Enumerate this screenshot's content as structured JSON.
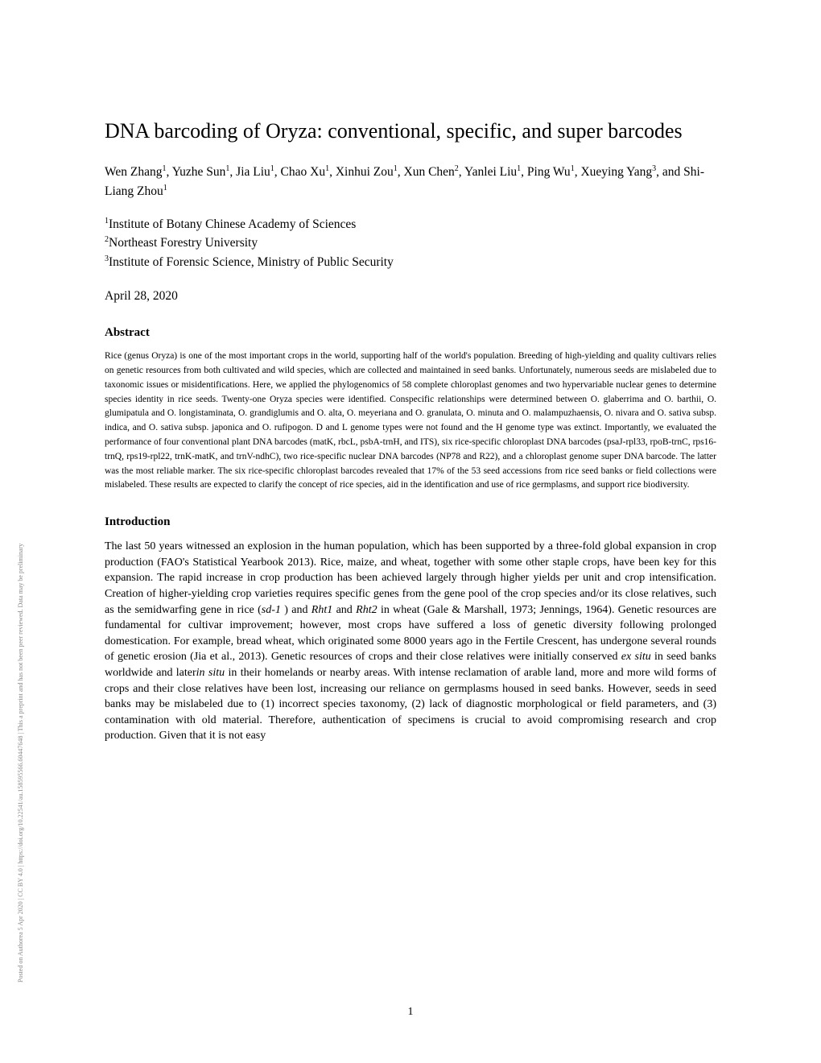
{
  "vertical_note": "Posted on Authorea 5 Apr 2020 | CC BY 4.0 | https://doi.org/10.22541/au.158595566.60447648 | This a preprint and has not been peer reviewed. Data may be preliminary",
  "title": "DNA barcoding of Oryza: conventional, specific, and super barcodes",
  "authors_parts": {
    "a1": "Wen Zhang",
    "a2": "Yuzhe Sun",
    "a3": "Jia Liu",
    "a4": "Chao Xu",
    "a5": "Xinhui Zou",
    "a6": "Xun Chen",
    "a7": "Yanlei Liu",
    "a8": "Ping Wu",
    "a9": "Xueying Yang",
    "a10": "Shi-Liang Zhou"
  },
  "affiliations": {
    "aff1": "Institute of Botany Chinese Academy of Sciences",
    "aff2": "Northeast Forestry University",
    "aff3": "Institute of Forensic Science, Ministry of Public Security"
  },
  "date": "April 28, 2020",
  "abstract_heading": "Abstract",
  "abstract_text": "Rice (genus Oryza) is one of the most important crops in the world, supporting half of the world's population. Breeding of high-yielding and quality cultivars relies on genetic resources from both cultivated and wild species, which are collected and maintained in seed banks. Unfortunately, numerous seeds are mislabeled due to taxonomic issues or misidentifications. Here, we applied the phylogenomics of 58 complete chloroplast genomes and two hypervariable nuclear genes to determine species identity in rice seeds. Twenty-one Oryza species were identified. Conspecific relationships were determined between O. glaberrima and O. barthii, O. glumipatula and O. longistaminata, O. grandiglumis and O. alta, O. meyeriana and O. granulata, O. minuta and O. malampuzhaensis, O. nivara and O. sativa subsp. indica, and O. sativa subsp. japonica and O. rufipogon. D and L genome types were not found and the H genome type was extinct. Importantly, we evaluated the performance of four conventional plant DNA barcodes (matK, rbcL, psbA-trnH, and ITS), six rice-specific chloroplast DNA barcodes (psaJ-rpl33, rpoB-trnC, rps16-trnQ, rps19-rpl22, trnK-matK, and trnV-ndhC), two rice-specific nuclear DNA barcodes (NP78 and R22), and a chloroplast genome super DNA barcode. The latter was the most reliable marker. The six rice-specific chloroplast barcodes revealed that 17% of the 53 seed accessions from rice seed banks or field collections were mislabeled. These results are expected to clarify the concept of rice species, aid in the identification and use of rice germplasms, and support rice biodiversity.",
  "intro_heading": "Introduction",
  "intro_p1_part1": "The last 50 years witnessed an explosion in the human population, which has been supported by a three-fold global expansion in crop production (FAO's Statistical Yearbook 2013). Rice, maize, and wheat, together with some other staple crops, have been key for this expansion. The rapid increase in crop production has been achieved largely through higher yields per unit and crop intensification. Creation of higher-yielding crop varieties requires specific genes from the gene pool of the crop species and/or its close relatives, such as the semidwarfing gene in rice (",
  "intro_sd1": "sd-1",
  "intro_p1_part2": " ) and ",
  "intro_rht1": "Rht1",
  "intro_p1_part3": " and ",
  "intro_rht2": "Rht2",
  "intro_p1_part4": " in wheat (Gale & Marshall, 1973; Jennings, 1964). Genetic resources are fundamental for cultivar improvement; however, most crops have suffered a loss of genetic diversity following prolonged domestication. For example, bread wheat, which originated some 8000 years ago in the Fertile Crescent, has undergone several rounds of genetic erosion (Jia et al., 2013). Genetic resources of crops and their close relatives were initially conserved ",
  "intro_exsitu": "ex situ",
  "intro_p1_part5": " in seed banks worldwide and later",
  "intro_insitu": "in situ",
  "intro_p1_part6": " in their homelands or nearby areas. With intense reclamation of arable land, more and more wild forms of crops and their close relatives have been lost, increasing our reliance on germplasms housed in seed banks. However, seeds in seed banks may be mislabeled due to (1) incorrect species taxonomy, (2) lack of diagnostic morphological or field parameters, and (3) contamination with old material. Therefore, authentication of specimens is crucial to avoid compromising research and crop production. Given that it is not easy",
  "page_number": "1"
}
